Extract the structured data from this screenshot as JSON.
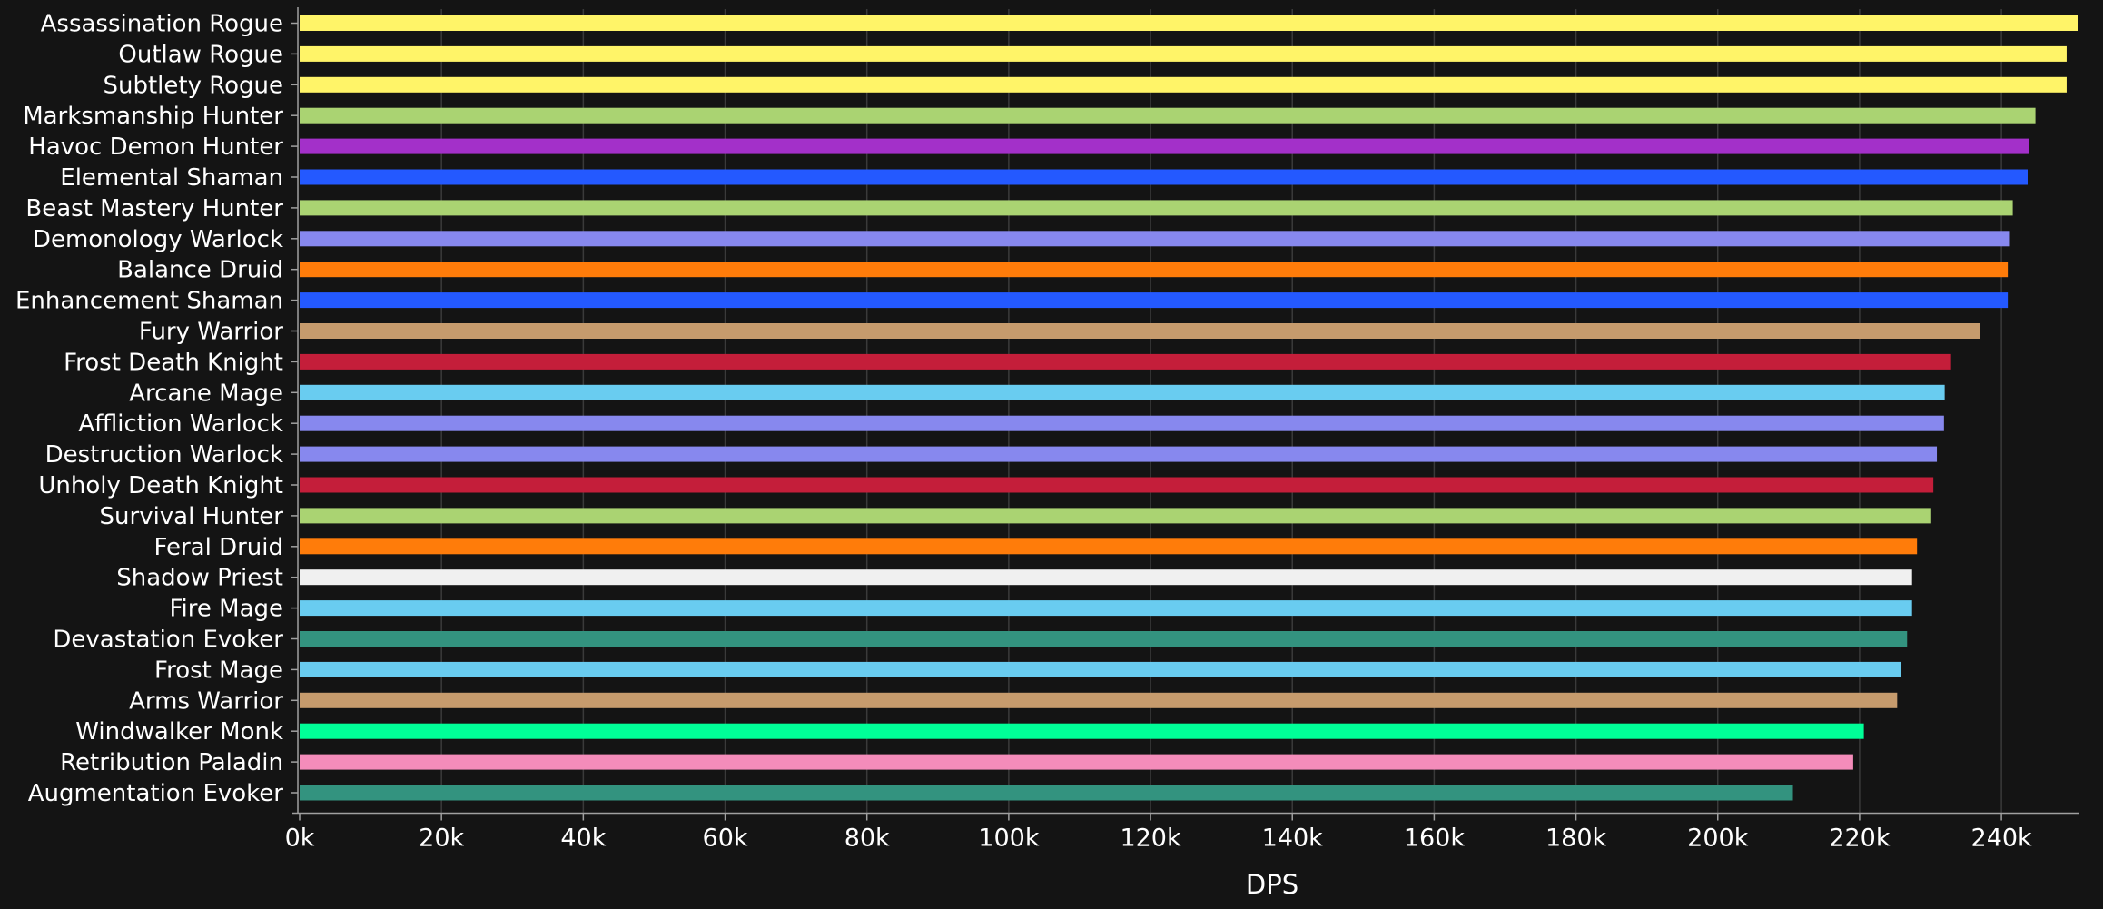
{
  "chart_data": {
    "type": "bar",
    "orientation": "horizontal",
    "title": "",
    "xlabel": "DPS",
    "ylabel": "",
    "xlim": [
      0,
      251000
    ],
    "x_ticks": [
      0,
      20000,
      40000,
      60000,
      80000,
      100000,
      120000,
      140000,
      160000,
      180000,
      200000,
      220000,
      240000
    ],
    "x_tick_labels": [
      "0k",
      "20k",
      "40k",
      "60k",
      "80k",
      "100k",
      "120k",
      "140k",
      "160k",
      "180k",
      "200k",
      "220k",
      "240k"
    ],
    "grid": true,
    "legend": "none",
    "categories": [
      "Assassination Rogue",
      "Outlaw Rogue",
      "Subtlety Rogue",
      "Marksmanship Hunter",
      "Havoc Demon Hunter",
      "Elemental Shaman",
      "Beast Mastery Hunter",
      "Demonology Warlock",
      "Balance Druid",
      "Enhancement Shaman",
      "Fury Warrior",
      "Frost Death Knight",
      "Arcane Mage",
      "Affliction Warlock",
      "Destruction Warlock",
      "Unholy Death Knight",
      "Survival Hunter",
      "Feral Druid",
      "Shadow Priest",
      "Fire Mage",
      "Devastation Evoker",
      "Frost Mage",
      "Arms Warrior",
      "Windwalker Monk",
      "Retribution Paladin",
      "Augmentation Evoker"
    ],
    "values": [
      250800,
      249200,
      249200,
      244800,
      243900,
      243700,
      241600,
      241200,
      240900,
      240900,
      237000,
      232900,
      232000,
      231900,
      230900,
      230400,
      230100,
      228100,
      227400,
      227400,
      226700,
      225800,
      225300,
      220600,
      219100,
      210600
    ],
    "colors": [
      "#FFF468",
      "#FFF468",
      "#FFF468",
      "#AAD372",
      "#A330C9",
      "#2459FF",
      "#AAD372",
      "#8788EE",
      "#FF7C0A",
      "#2459FF",
      "#C69B6D",
      "#C41E3A",
      "#69CCF0",
      "#8788EE",
      "#8788EE",
      "#C41E3A",
      "#AAD372",
      "#FF7C0A",
      "#F0F0F0",
      "#69CCF0",
      "#33937F",
      "#69CCF0",
      "#C69B6D",
      "#00FF98",
      "#F48CBA",
      "#33937F"
    ]
  },
  "style": {
    "background": "#141414",
    "grid_color": "#3a3a3a",
    "axis_color": "#a0a0a0",
    "text_color": "#ffffff"
  }
}
